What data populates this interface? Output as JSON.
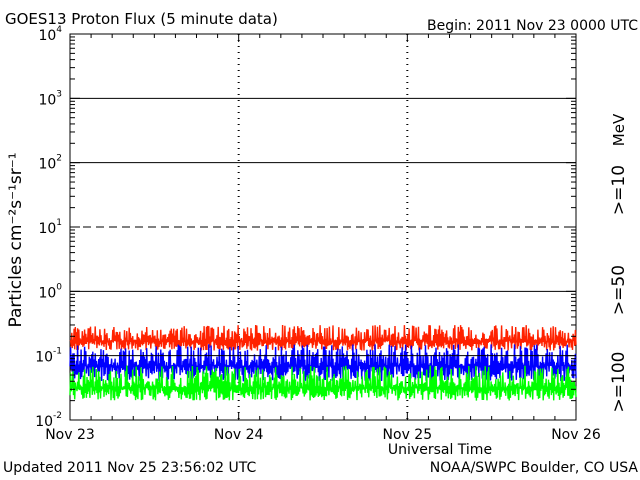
{
  "header": {
    "title": "GOES13 Proton Flux (5 minute data)",
    "begin": "Begin: 2011 Nov 23 0000 UTC"
  },
  "footer": {
    "updated": "Updated 2011 Nov 25 23:56:02 UTC",
    "source": "NOAA/SWPC Boulder, CO USA"
  },
  "chart_data": {
    "type": "line",
    "title": "GOES13 Proton Flux (5 minute data)",
    "xlabel": "Universal Time",
    "ylabel": "Particles cm⁻²s⁻¹sr⁻¹",
    "yscale": "log",
    "ylim": [
      0.01,
      10000
    ],
    "y_ticks": [
      {
        "value": 0.01,
        "base": "10",
        "exp": "-2"
      },
      {
        "value": 0.1,
        "base": "10",
        "exp": "-1"
      },
      {
        "value": 1,
        "base": "10",
        "exp": "0"
      },
      {
        "value": 10,
        "base": "10",
        "exp": "1"
      },
      {
        "value": 100,
        "base": "10",
        "exp": "2"
      },
      {
        "value": 1000,
        "base": "10",
        "exp": "3"
      },
      {
        "value": 10000,
        "base": "10",
        "exp": "4"
      }
    ],
    "x_ticks": [
      "Nov 23",
      "Nov 24",
      "Nov 25",
      "Nov 26"
    ],
    "xlim_days": [
      0,
      3
    ],
    "thresholds": [
      {
        "value": 10,
        "style": "dashed"
      },
      {
        "value": 1,
        "style": "solid"
      },
      {
        "value": 100,
        "style": "solid"
      },
      {
        "value": 1000,
        "style": "solid"
      }
    ],
    "legend_unit": "MeV",
    "series": [
      {
        "name": ">=10",
        "color": "#ff2200",
        "range": [
          0.12,
          0.3
        ],
        "typical": 0.17
      },
      {
        "name": ">=50",
        "color": "#0000ff",
        "range": [
          0.04,
          0.15
        ],
        "typical": 0.07
      },
      {
        "name": ">=100",
        "color": "#00ff00",
        "range": [
          0.02,
          0.07
        ],
        "typical": 0.032
      }
    ]
  }
}
